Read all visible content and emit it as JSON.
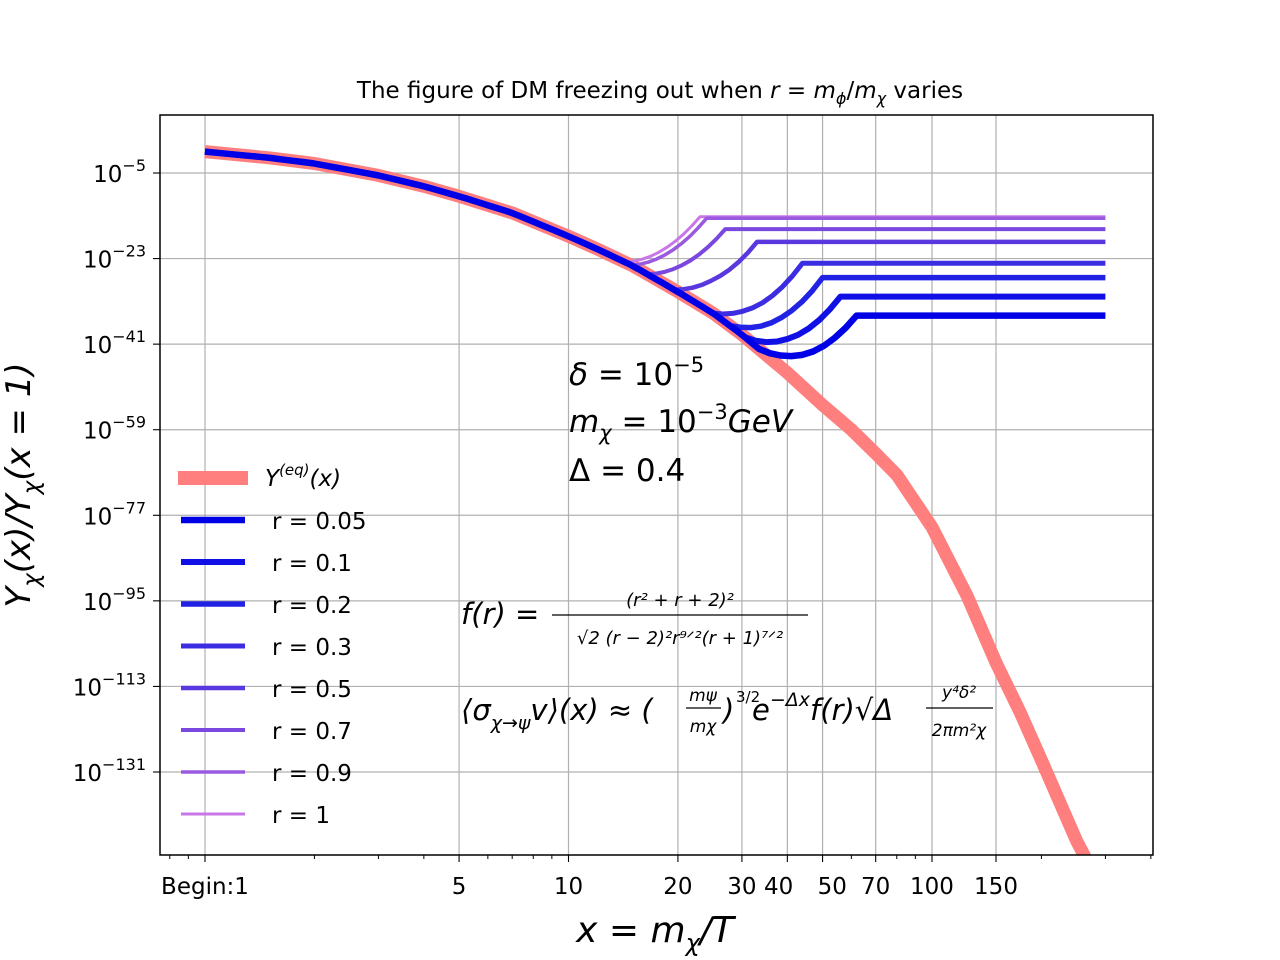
{
  "chart_data": {
    "type": "line",
    "title": "The figure of DM freezing out when r = mϕ/mχ varies",
    "title_parts": {
      "prefix": "The figure of DM freezing out when ",
      "r": "r",
      "eq": " = ",
      "m1": "m",
      "s1": "ϕ",
      "slash": "/",
      "m2": "m",
      "s2": "χ",
      "suffix": " varies"
    },
    "xlabel": "x = mχ/T",
    "xlabel_parts": {
      "x": "x",
      "eq": " = ",
      "m": "m",
      "sub": "χ",
      "rest": "/T"
    },
    "ylabel": "Yχ(x)/Yχ(x = 1)",
    "ylabel_parts": {
      "y1": "Y",
      "s1": "χ",
      "a1": "(x)/",
      "y2": "Y",
      "s2": "χ",
      "a2": "(x = 1)"
    },
    "xscale": "log",
    "yscale": "log",
    "xlim": [
      0.88,
      15.5
    ],
    "ylim_exponent": [
      -157,
      -4
    ],
    "grid": true,
    "legend_position": "lower-left",
    "x_ticks": [
      {
        "value": 1,
        "label": "Begin:1"
      },
      {
        "value": 5,
        "label": "5"
      },
      {
        "value": 10,
        "label": "10"
      },
      {
        "value": 20,
        "label": "20"
      },
      {
        "value": 30,
        "label": "30"
      },
      {
        "value": 40,
        "label": "40"
      },
      {
        "value": 50,
        "label": "50"
      },
      {
        "value": 70,
        "label": "70"
      },
      {
        "value": 100,
        "label": "100"
      },
      {
        "value": 150,
        "label": "150"
      }
    ],
    "y_ticks": [
      {
        "exponent": -5,
        "base": "10",
        "sup": "−5"
      },
      {
        "exponent": -23,
        "base": "10",
        "sup": "−23"
      },
      {
        "exponent": -41,
        "base": "10",
        "sup": "−41"
      },
      {
        "exponent": -59,
        "base": "10",
        "sup": "−59"
      },
      {
        "exponent": -77,
        "base": "10",
        "sup": "−77"
      },
      {
        "exponent": -95,
        "base": "10",
        "sup": "−95"
      },
      {
        "exponent": -113,
        "base": "10",
        "sup": "−113"
      },
      {
        "exponent": -131,
        "base": "10",
        "sup": "−131"
      }
    ],
    "equilibrium": {
      "name": "Y(eq)(x)",
      "legend_base": "Y",
      "legend_sup": "(eq)",
      "legend_tail": "(x)",
      "color": "#ff7f7f",
      "points": [
        [
          1.0,
          -0.5
        ],
        [
          1.5,
          -1.8
        ],
        [
          2.0,
          -3.0
        ],
        [
          3.0,
          -5.5
        ],
        [
          4.0,
          -7.8
        ],
        [
          5.0,
          -9.9
        ],
        [
          7.0,
          -13.4
        ],
        [
          10.0,
          -18.3
        ],
        [
          12.0,
          -21.0
        ],
        [
          15.0,
          -24.5
        ],
        [
          20.0,
          -30.0
        ],
        [
          25.0,
          -34.5
        ],
        [
          30.0,
          -39.0
        ],
        [
          40.0,
          -47.0
        ],
        [
          50.0,
          -53.8
        ],
        [
          60.0,
          -59.0
        ],
        [
          70.0,
          -64.0
        ],
        [
          80.0,
          -68.5
        ],
        [
          100.0,
          -79.5
        ],
        [
          125.0,
          -94.0
        ],
        [
          150.0,
          -108.0
        ],
        [
          175.0,
          -118.5
        ],
        [
          200.0,
          -128.5
        ],
        [
          250.0,
          -145.5
        ],
        [
          300.0,
          -157.0
        ]
      ]
    },
    "series": [
      {
        "name": "r = 0.05",
        "freeze_x": 62,
        "y_exponent": -35,
        "color": "#0000e6",
        "width": 6.5
      },
      {
        "name": "r = 0.1",
        "freeze_x": 56,
        "y_exponent": -31,
        "color": "#1010e6",
        "width": 6.0
      },
      {
        "name": "r = 0.2",
        "freeze_x": 50,
        "y_exponent": -27,
        "color": "#2222e4",
        "width": 5.5
      },
      {
        "name": "r = 0.3",
        "freeze_x": 44,
        "y_exponent": -24,
        "color": "#3c2ce2",
        "width": 5.0
      },
      {
        "name": "r = 0.5",
        "freeze_x": 33,
        "y_exponent": -19.5,
        "color": "#5a38e0",
        "width": 4.5
      },
      {
        "name": "r = 0.7",
        "freeze_x": 27,
        "y_exponent": -16.8,
        "color": "#7a48de",
        "width": 4.0
      },
      {
        "name": "r = 0.9",
        "freeze_x": 24,
        "y_exponent": -14.5,
        "color": "#9a5ae0",
        "width": 3.5
      },
      {
        "name": "r = 1",
        "freeze_x": 23,
        "y_exponent": -14.2,
        "color": "#c878e6",
        "width": 3.0
      }
    ],
    "x_end": 300,
    "annotations": {
      "params": {
        "delta_sym": "δ",
        "delta_eq": " = 10",
        "delta_sup": "−5",
        "m_sym": "m",
        "m_sub": "χ",
        "m_eq": " = 10",
        "m_sup": "−3",
        "m_unit": "GeV",
        "Delta_sym": "Δ",
        "Delta_eq": " = 0.4"
      },
      "f_of_r": {
        "lhs": "f(r) = ",
        "numerator": "(r² + r + 2)²",
        "denominator": "√2 (r − 2)²r⁹ᐟ²(r + 1)⁷ᐟ²"
      },
      "sigma_v": {
        "lhs": "⟨σ",
        "lhs_sub": "χ→ψ",
        "lhs_v": "v⟩(x) ≈ (",
        "frac1_num": "mψ",
        "frac1_den": "mχ",
        "pow": "3/2",
        "exp_base": ")",
        "e": "e",
        "e_sup": "−Δx",
        "mid": "f(r)√Δ",
        "frac2_num": "y⁴δ²",
        "frac2_den": "2πm²χ"
      }
    }
  }
}
